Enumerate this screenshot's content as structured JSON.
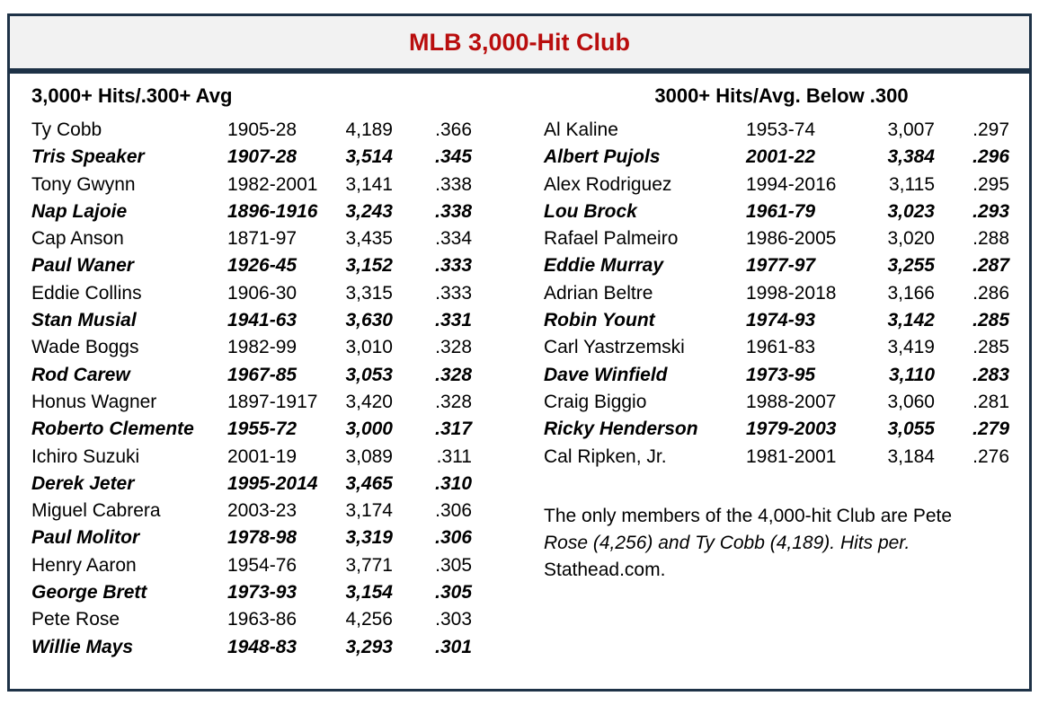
{
  "title": "MLB 3,000-Hit Club",
  "colors": {
    "title_text": "#B90D0D",
    "border": "#1E3247",
    "title_bar_bg": "#F2F2F2",
    "body_text": "#000000"
  },
  "left_table": {
    "header": "3,000+ Hits/.300+ Avg",
    "rows": [
      {
        "name": "Ty Cobb",
        "years": "1905-28",
        "hits": "4,189",
        "avg": ".366",
        "emphasis": false
      },
      {
        "name": "Tris Speaker",
        "years": "1907-28",
        "hits": "3,514",
        "avg": ".345",
        "emphasis": true
      },
      {
        "name": "Tony Gwynn",
        "years": "1982-2001",
        "hits": "3,141",
        "avg": ".338",
        "emphasis": false
      },
      {
        "name": "Nap Lajoie",
        "years": "1896-1916",
        "hits": "3,243",
        "avg": ".338",
        "emphasis": true
      },
      {
        "name": "Cap Anson",
        "years": "1871-97",
        "hits": "3,435",
        "avg": ".334",
        "emphasis": false
      },
      {
        "name": "Paul Waner",
        "years": "1926-45",
        "hits": "3,152",
        "avg": ".333",
        "emphasis": true
      },
      {
        "name": "Eddie Collins",
        "years": "1906-30",
        "hits": "3,315",
        "avg": ".333",
        "emphasis": false
      },
      {
        "name": "Stan Musial",
        "years": "1941-63",
        "hits": "3,630",
        "avg": ".331",
        "emphasis": true
      },
      {
        "name": "Wade Boggs",
        "years": "1982-99",
        "hits": "3,010",
        "avg": ".328",
        "emphasis": false
      },
      {
        "name": "Rod Carew",
        "years": "1967-85",
        "hits": "3,053",
        "avg": ".328",
        "emphasis": true
      },
      {
        "name": "Honus Wagner",
        "years": "1897-1917",
        "hits": "3,420",
        "avg": ".328",
        "emphasis": false
      },
      {
        "name": "Roberto Clemente",
        "years": "1955-72",
        "hits": "3,000",
        "avg": ".317",
        "emphasis": true
      },
      {
        "name": "Ichiro Suzuki",
        "years": "2001-19",
        "hits": "3,089",
        "avg": ".311",
        "emphasis": false
      },
      {
        "name": "Derek Jeter",
        "years": "1995-2014",
        "hits": "3,465",
        "avg": ".310",
        "emphasis": true
      },
      {
        "name": "Miguel Cabrera",
        "years": "2003-23",
        "hits": "3,174",
        "avg": ".306",
        "emphasis": false
      },
      {
        "name": "Paul Molitor",
        "years": "1978-98",
        "hits": "3,319",
        "avg": ".306",
        "emphasis": true
      },
      {
        "name": "Henry Aaron",
        "years": "1954-76",
        "hits": "3,771",
        "avg": ".305",
        "emphasis": false
      },
      {
        "name": "George Brett",
        "years": "1973-93",
        "hits": "3,154",
        "avg": ".305",
        "emphasis": true
      },
      {
        "name": "Pete Rose",
        "years": "1963-86",
        "hits": "4,256",
        "avg": ".303",
        "emphasis": false
      },
      {
        "name": "Willie Mays",
        "years": "1948-83",
        "hits": "3,293",
        "avg": ".301",
        "emphasis": true
      }
    ]
  },
  "right_table": {
    "header": "3000+ Hits/Avg. Below .300",
    "rows": [
      {
        "name": "Al Kaline",
        "years": "1953-74",
        "hits": "3,007",
        "avg": ".297",
        "emphasis": false
      },
      {
        "name": "Albert Pujols",
        "years": "2001-22",
        "hits": "3,384",
        "avg": ".296",
        "emphasis": true
      },
      {
        "name": "Alex Rodriguez",
        "years": "1994-2016",
        "hits": "3,115",
        "avg": ".295",
        "emphasis": false
      },
      {
        "name": "Lou Brock",
        "years": "1961-79",
        "hits": "3,023",
        "avg": ".293",
        "emphasis": true
      },
      {
        "name": "Rafael Palmeiro",
        "years": "1986-2005",
        "hits": "3,020",
        "avg": ".288",
        "emphasis": false
      },
      {
        "name": "Eddie Murray",
        "years": "1977-97",
        "hits": "3,255",
        "avg": ".287",
        "emphasis": true
      },
      {
        "name": "Adrian Beltre",
        "years": "1998-2018",
        "hits": "3,166",
        "avg": ".286",
        "emphasis": false
      },
      {
        "name": "Robin Yount",
        "years": "1974-93",
        "hits": "3,142",
        "avg": ".285",
        "emphasis": true
      },
      {
        "name": "Carl Yastrzemski",
        "years": "1961-83",
        "hits": "3,419",
        "avg": ".285",
        "emphasis": false
      },
      {
        "name": "Dave Winfield",
        "years": "1973-95",
        "hits": "3,110",
        "avg": ".283",
        "emphasis": true
      },
      {
        "name": "Craig Biggio",
        "years": "1988-2007",
        "hits": "3,060",
        "avg": ".281",
        "emphasis": false
      },
      {
        "name": "Ricky Henderson",
        "years": "1979-2003",
        "hits": "3,055",
        "avg": ".279",
        "emphasis": true
      },
      {
        "name": "Cal Ripken, Jr.",
        "years": "1981-2001",
        "hits": "3,184",
        "avg": ".276",
        "emphasis": false
      }
    ]
  },
  "note": {
    "lines": [
      {
        "text": "The only members of the 4,000-hit Club are Pete",
        "italic": false
      },
      {
        "text": "Rose (4,256) and Ty Cobb (4,189). Hits per.",
        "italic": true
      },
      {
        "text": "Stathead.com.",
        "italic": false
      }
    ]
  }
}
